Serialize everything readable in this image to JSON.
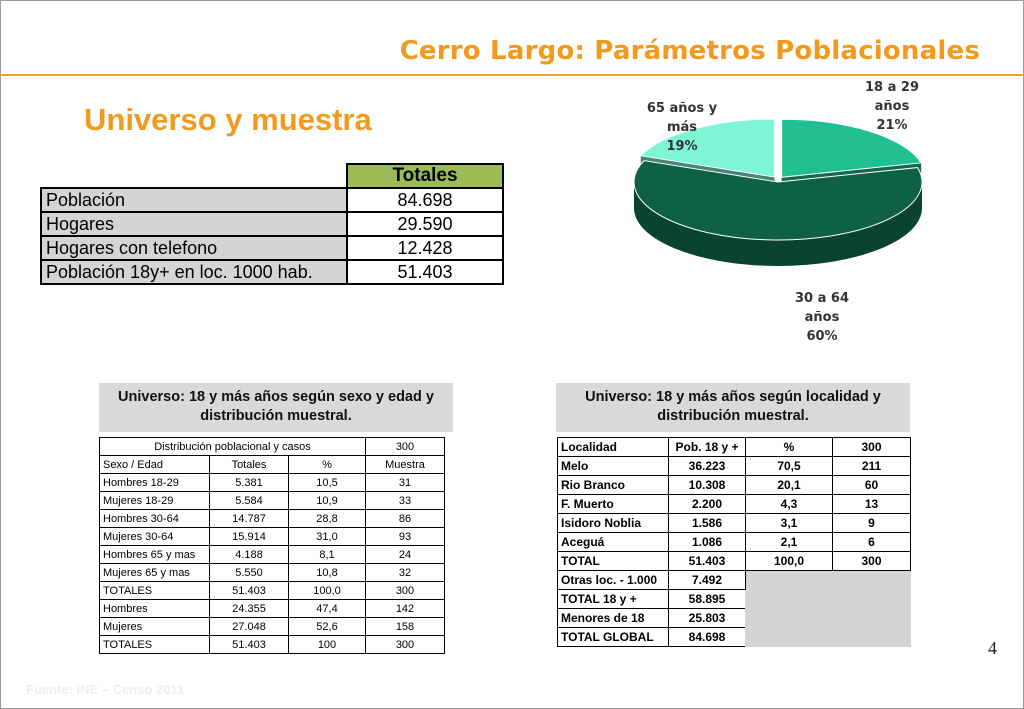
{
  "title": "Cerro Largo: Parámetros Poblacionales",
  "subtitle": "Universo y muestra",
  "totals_table": {
    "header": "Totales",
    "rows": [
      {
        "label": "Población",
        "value": "84.698"
      },
      {
        "label": "Hogares",
        "value": "29.590"
      },
      {
        "label": "Hogares con telefono",
        "value": "12.428"
      },
      {
        "label": "Población 18y+ en loc. 1000 hab.",
        "value": "51.403"
      }
    ]
  },
  "pie_labels": {
    "a": [
      "18 a 29",
      "años",
      "21%"
    ],
    "b": [
      "65 años y",
      "más",
      "19%"
    ],
    "c": [
      "30 a 64",
      "años",
      "60%"
    ]
  },
  "chart_data": {
    "type": "pie",
    "categories": [
      "18 a 29 años",
      "30 a 64 años",
      "65 años y más"
    ],
    "values": [
      21,
      60,
      19
    ],
    "colors": [
      "#1fbf8f",
      "#0e6046",
      "#7ef5d5"
    ]
  },
  "sex_age": {
    "caption": "Universo: 18 y más años según sexo y edad y distribución muestral.",
    "head1": {
      "title": "Distribución poblacional y casos",
      "n": "300"
    },
    "head2": [
      "Sexo / Edad",
      "Totales",
      "%",
      "Muestra"
    ],
    "rows": [
      [
        "Hombres 18-29",
        "5.381",
        "10,5",
        "31"
      ],
      [
        "Mujeres 18-29",
        "5.584",
        "10,9",
        "33"
      ],
      [
        "Hombres 30-64",
        "14.787",
        "28,8",
        "86"
      ],
      [
        "Mujeres 30-64",
        "15.914",
        "31,0",
        "93"
      ],
      [
        "Hombres 65 y mas",
        "4.188",
        "8,1",
        "24"
      ],
      [
        "Mujeres 65 y mas",
        "5.550",
        "10,8",
        "32"
      ],
      [
        "TOTALES",
        "51.403",
        "100,0",
        "300"
      ],
      [
        "Hombres",
        "24.355",
        "47,4",
        "142"
      ],
      [
        "Mujeres",
        "27.048",
        "52,6",
        "158"
      ],
      [
        "TOTALES",
        "51.403",
        "100",
        "300"
      ]
    ]
  },
  "locality": {
    "caption": "Universo: 18 y más años según localidad y distribución muestral.",
    "head": [
      "Localidad",
      "Pob. 18 y +",
      "%",
      "300"
    ],
    "rows": [
      [
        "Melo",
        "36.223",
        "70,5",
        "211"
      ],
      [
        "Rio Branco",
        "10.308",
        "20,1",
        "60"
      ],
      [
        "F. Muerto",
        "2.200",
        "4,3",
        "13"
      ],
      [
        "Isidoro Noblia",
        "1.586",
        "3,1",
        "9"
      ],
      [
        "Aceguá",
        "1.086",
        "2,1",
        "6"
      ],
      [
        "TOTAL",
        "51.403",
        "100,0",
        "300"
      ]
    ],
    "extra_rows": [
      [
        "Otras loc. - 1.000",
        "7.492"
      ],
      [
        "TOTAL 18 y +",
        "58.895"
      ],
      [
        "Menores de 18",
        "25.803"
      ],
      [
        "TOTAL GLOBAL",
        "84.698"
      ]
    ]
  },
  "page_number": "4",
  "source": "Fuente: INE – Censo 2011"
}
